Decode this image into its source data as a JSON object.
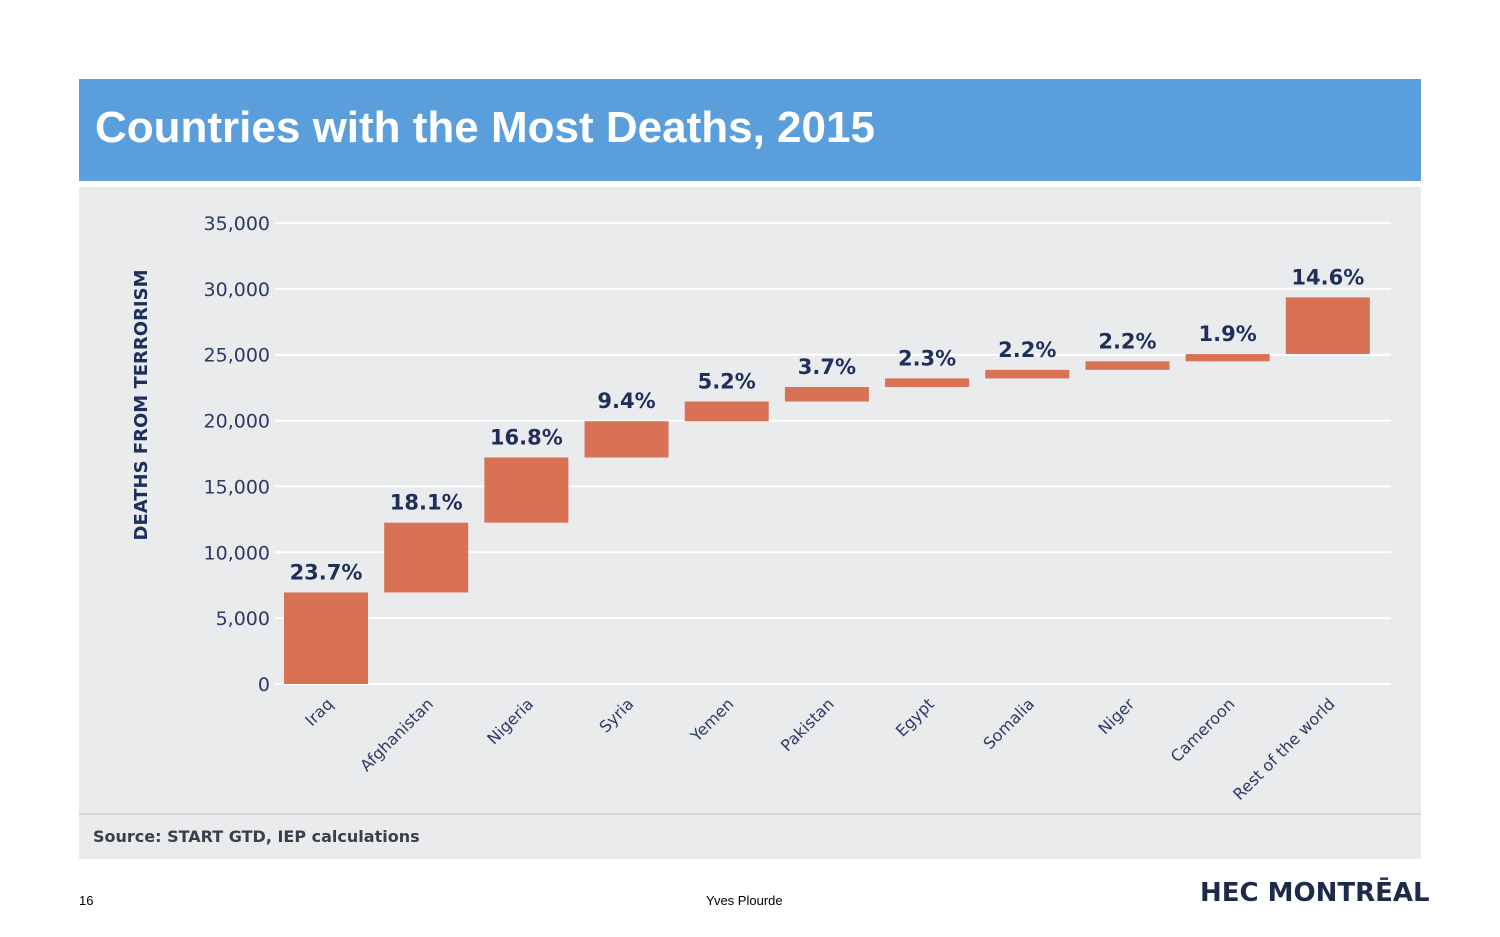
{
  "slide": {
    "title": "Countries with the Most Deaths, 2015",
    "page_number": "16",
    "author": "Yves Plourde",
    "logo_text": "HEC MONTRĒAL",
    "source": "Source: START GTD, IEP calculations"
  },
  "colors": {
    "title_bar": "#5a9fdc",
    "bar": "#d97155",
    "panel": "#eaebed",
    "text_dark": "#1f2f5c"
  },
  "chart_data": {
    "type": "waterfall",
    "ylabel": "DEATHS FROM TERRORISM",
    "ylim": [
      0,
      35000
    ],
    "yticks": [
      0,
      5000,
      10000,
      15000,
      20000,
      25000,
      30000,
      35000
    ],
    "ytick_labels": [
      "0",
      "5,000",
      "10,000",
      "15,000",
      "20,000",
      "25,000",
      "30,000",
      "35,000"
    ],
    "grid": true,
    "categories": [
      "Iraq",
      "Afghanistan",
      "Nigeria",
      "Syria",
      "Yemen",
      "Pakistan",
      "Egypt",
      "Somalia",
      "Niger",
      "Cameroon",
      "Rest of the world"
    ],
    "values": [
      6950,
      5300,
      4950,
      2750,
      1500,
      1100,
      650,
      650,
      650,
      550,
      4300
    ],
    "bottoms": [
      0,
      6950,
      12250,
      17200,
      19950,
      21450,
      22550,
      23200,
      23850,
      24500,
      25050
    ],
    "labels": [
      "23.7%",
      "18.1%",
      "16.8%",
      "9.4%",
      "5.2%",
      "3.7%",
      "2.3%",
      "2.2%",
      "2.2%",
      "1.9%",
      "14.6%"
    ]
  }
}
